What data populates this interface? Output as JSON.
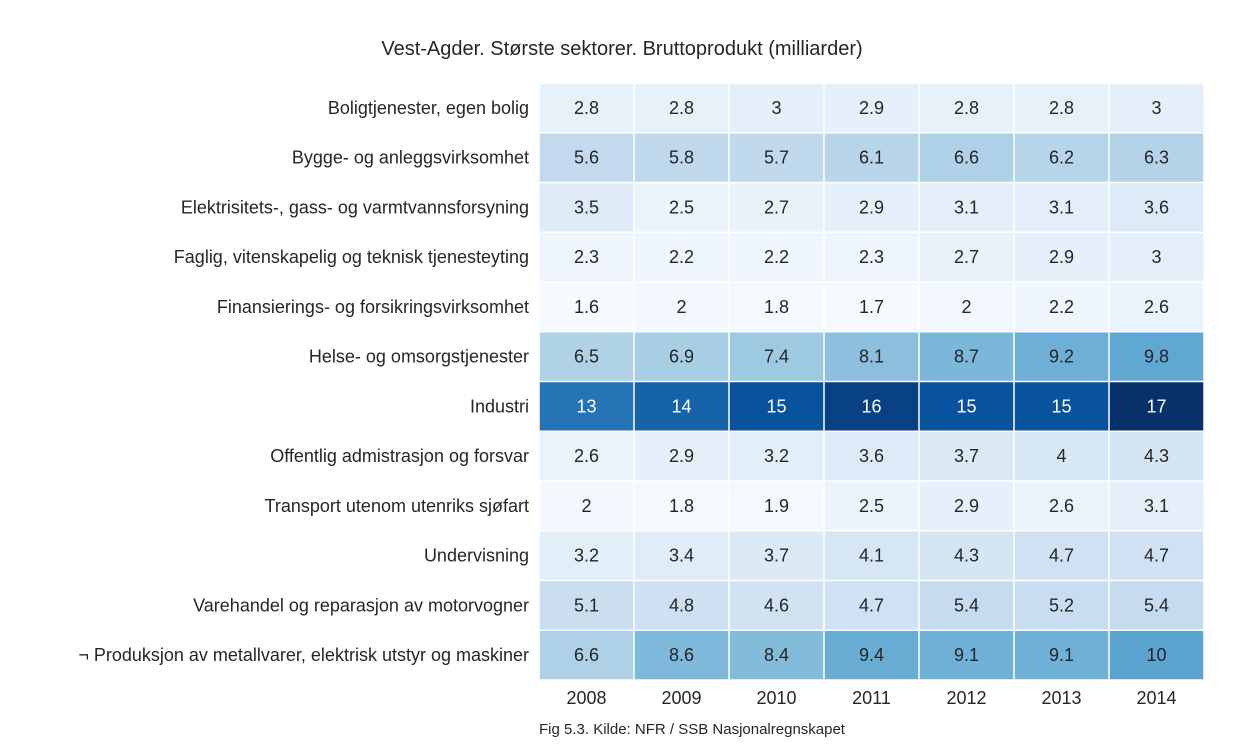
{
  "chart_data": {
    "type": "heatmap",
    "title": "Vest-Agder. Største sektorer. Bruttoprodukt (milliarder)",
    "caption": "Fig 5.3. Kilde: NFR / SSB Nasjonalregnskapet",
    "x": [
      "2008",
      "2009",
      "2010",
      "2011",
      "2012",
      "2013",
      "2014"
    ],
    "y": [
      "Boligtjenester, egen bolig",
      "Bygge- og anleggsvirksomhet",
      "Elektrisitets-, gass- og varmtvannsforsyning",
      "Faglig, vitenskapelig og teknisk tjenesteyting",
      "Finansierings- og forsikringsvirksomhet",
      "Helse- og omsorgstjenester",
      "Industri",
      "Offentlig admistrasjon og forsvar",
      "Transport utenom utenriks sjøfart",
      "Undervisning",
      "Varehandel og reparasjon av motorvogner",
      "¬ Produksjon av metallvarer, elektrisk utstyr og maskiner"
    ],
    "values": [
      [
        2.8,
        2.8,
        3,
        2.9,
        2.8,
        2.8,
        3
      ],
      [
        5.6,
        5.8,
        5.7,
        6.1,
        6.6,
        6.2,
        6.3
      ],
      [
        3.5,
        2.5,
        2.7,
        2.9,
        3.1,
        3.1,
        3.6
      ],
      [
        2.3,
        2.2,
        2.2,
        2.3,
        2.7,
        2.9,
        3
      ],
      [
        1.6,
        2,
        1.8,
        1.7,
        2,
        2.2,
        2.6
      ],
      [
        6.5,
        6.9,
        7.4,
        8.1,
        8.7,
        9.2,
        9.8
      ],
      [
        13,
        14,
        15,
        16,
        15,
        15,
        17
      ],
      [
        2.6,
        2.9,
        3.2,
        3.6,
        3.7,
        4,
        4.3
      ],
      [
        2,
        1.8,
        1.9,
        2.5,
        2.9,
        2.6,
        3.1
      ],
      [
        3.2,
        3.4,
        3.7,
        4.1,
        4.3,
        4.7,
        4.7
      ],
      [
        5.1,
        4.8,
        4.6,
        4.7,
        5.4,
        5.2,
        5.4
      ],
      [
        6.6,
        8.6,
        8.4,
        9.4,
        9.1,
        9.1,
        10
      ]
    ],
    "colormap": "Blues",
    "annotated": true,
    "colorbar": false
  }
}
